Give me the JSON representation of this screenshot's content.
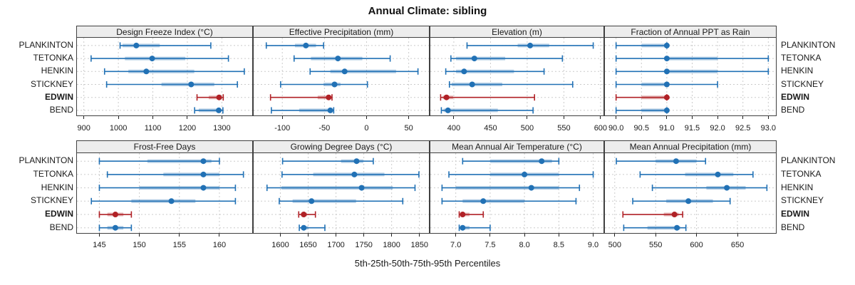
{
  "title": "Annual Climate: sibling",
  "caption": "5th-25th-50th-75th-95th Percentiles",
  "colors": {
    "series_blue": "#2171B5",
    "highlight_red": "#B02126",
    "grid": "#CBCBCB",
    "strip_bg": "#EDEDED",
    "panel_border": "#404040",
    "text": "#1A1A1A"
  },
  "chart_data": {
    "type": "scatter",
    "variant": "percentile-interval-dotplot",
    "orientation": "horizontal",
    "percentile_levels": [
      5,
      25,
      50,
      75,
      95
    ],
    "categories": [
      "PLANKINTON",
      "TETONKA",
      "HENKIN",
      "STICKNEY",
      "EDWIN",
      "BEND"
    ],
    "highlighted_category": "EDWIN",
    "grid": "dashed",
    "layout": "2 rows x 4 columns of panels, category labels on both left and right",
    "panels": [
      {
        "title": "Design Freeze Index (°C)",
        "xlim": [
          880,
          1388
        ],
        "ticks": [
          900,
          1000,
          1100,
          1200,
          1300
        ],
        "tick_labels": [
          "900",
          "1000",
          "1100",
          "1200",
          "1300"
        ],
        "series": [
          {
            "name": "PLANKINTON",
            "percentiles": [
              1005,
              1012,
              1052,
              1120,
              1268
            ]
          },
          {
            "name": "TETONKA",
            "percentiles": [
              921,
              1019,
              1098,
              1194,
              1319
            ]
          },
          {
            "name": "HENKIN",
            "percentiles": [
              960,
              1029,
              1081,
              1220,
              1365
            ]
          },
          {
            "name": "STICKNEY",
            "percentiles": [
              966,
              1125,
              1211,
              1278,
              1345
            ]
          },
          {
            "name": "EDWIN",
            "percentiles": [
              1228,
              1262,
              1292,
              1298,
              1304
            ]
          },
          {
            "name": "BEND",
            "percentiles": [
              1221,
              1233,
              1291,
              1297,
              1303
            ]
          }
        ]
      },
      {
        "title": "Effective Precipitation (mm)",
        "xlim": [
          -134,
          74
        ],
        "ticks": [
          -100,
          -50,
          0,
          50
        ],
        "tick_labels": [
          "-100",
          "-50",
          "0",
          "50"
        ],
        "series": [
          {
            "name": "PLANKINTON",
            "percentiles": [
              -119,
              -85,
              -72,
              -60,
              -51
            ]
          },
          {
            "name": "TETONKA",
            "percentiles": [
              -86,
              -66,
              -34,
              -5,
              28
            ]
          },
          {
            "name": "HENKIN",
            "percentiles": [
              -67,
              -43,
              -26,
              35,
              61
            ]
          },
          {
            "name": "STICKNEY",
            "percentiles": [
              -102,
              -51,
              -38,
              -31,
              1
            ]
          },
          {
            "name": "EDWIN",
            "percentiles": [
              -114,
              -58,
              -45,
              -43,
              -41
            ]
          },
          {
            "name": "BEND",
            "percentiles": [
              -113,
              -80,
              -43,
              -41,
              -39
            ]
          }
        ]
      },
      {
        "title": "Elevation (m)",
        "xlim": [
          368,
          604
        ],
        "ticks": [
          400,
          450,
          500,
          550,
          600
        ],
        "tick_labels": [
          "400",
          "450",
          "500",
          "550",
          "600"
        ],
        "series": [
          {
            "name": "PLANKINTON",
            "percentiles": [
              418,
              487,
              504,
              530,
              590
            ]
          },
          {
            "name": "TETONKA",
            "percentiles": [
              396,
              403,
              428,
              470,
              548
            ]
          },
          {
            "name": "HENKIN",
            "percentiles": [
              389,
              403,
              414,
              482,
              523
            ]
          },
          {
            "name": "STICKNEY",
            "percentiles": [
              394,
              397,
              425,
              466,
              562
            ]
          },
          {
            "name": "EDWIN",
            "percentiles": [
              382,
              385,
              390,
              399,
              510
            ]
          },
          {
            "name": "BEND",
            "percentiles": [
              383,
              386,
              392,
              460,
              508
            ]
          }
        ]
      },
      {
        "title": "Fraction of Annual PPT as Rain",
        "xlim": [
          89.78,
          93.15
        ],
        "ticks": [
          90.0,
          90.5,
          91.0,
          91.5,
          92.0,
          92.5,
          93.0
        ],
        "tick_labels": [
          "90.0",
          "90.5",
          "91.0",
          "91.5",
          "92.0",
          "92.5",
          "93.0"
        ],
        "series": [
          {
            "name": "PLANKINTON",
            "percentiles": [
              90,
              90.5,
              91,
              91,
              91
            ]
          },
          {
            "name": "TETONKA",
            "percentiles": [
              90,
              91,
              91,
              92,
              93
            ]
          },
          {
            "name": "HENKIN",
            "percentiles": [
              90,
              91,
              91,
              92,
              93
            ]
          },
          {
            "name": "STICKNEY",
            "percentiles": [
              90,
              90.5,
              91,
              91,
              92
            ]
          },
          {
            "name": "EDWIN",
            "percentiles": [
              90,
              90.5,
              91,
              91,
              91
            ]
          },
          {
            "name": "BEND",
            "percentiles": [
              90,
              90.5,
              91,
              91,
              91
            ]
          }
        ]
      },
      {
        "title": "Frost-Free Days",
        "xlim": [
          142.2,
          164.1
        ],
        "ticks": [
          145,
          150,
          155,
          160
        ],
        "tick_labels": [
          "145",
          "150",
          "155",
          "160"
        ],
        "series": [
          {
            "name": "PLANKINTON",
            "percentiles": [
              145,
              151,
              158,
              159,
              160
            ]
          },
          {
            "name": "TETONKA",
            "percentiles": [
              146,
              153,
              158,
              160,
              163
            ]
          },
          {
            "name": "HENKIN",
            "percentiles": [
              145,
              150,
              158,
              160,
              162
            ]
          },
          {
            "name": "STICKNEY",
            "percentiles": [
              144,
              149,
              154,
              157,
              162
            ]
          },
          {
            "name": "EDWIN",
            "percentiles": [
              145,
              146,
              147,
              148,
              149
            ]
          },
          {
            "name": "BEND",
            "percentiles": [
              145,
              146,
              147,
              148,
              149
            ]
          }
        ]
      },
      {
        "title": "Growing Degree Days (°C)",
        "xlim": [
          1552,
          1867
        ],
        "ticks": [
          1600,
          1650,
          1700,
          1750,
          1800,
          1850
        ],
        "tick_labels": [
          "1600",
          "1650",
          "1700",
          "1750",
          "1800",
          "1850"
        ],
        "series": [
          {
            "name": "PLANKINTON",
            "percentiles": [
              1604,
              1709,
              1737,
              1749,
              1767
            ]
          },
          {
            "name": "TETONKA",
            "percentiles": [
              1603,
              1659,
              1733,
              1787,
              1849
            ]
          },
          {
            "name": "HENKIN",
            "percentiles": [
              1576,
              1602,
              1746,
              1802,
              1842
            ]
          },
          {
            "name": "STICKNEY",
            "percentiles": [
              1598,
              1622,
              1656,
              1736,
              1820
            ]
          },
          {
            "name": "EDWIN",
            "percentiles": [
              1633,
              1637,
              1642,
              1648,
              1663
            ]
          },
          {
            "name": "BEND",
            "percentiles": [
              1634,
              1638,
              1642,
              1650,
              1680
            ]
          }
        ]
      },
      {
        "title": "Mean Annual Air Temperature (°C)",
        "xlim": [
          6.63,
          9.15
        ],
        "ticks": [
          7.0,
          7.5,
          8.0,
          8.5,
          9.0
        ],
        "tick_labels": [
          "7.0",
          "7.5",
          "8.0",
          "8.5",
          "9.0"
        ],
        "series": [
          {
            "name": "PLANKINTON",
            "percentiles": [
              7.1,
              7.5,
              8.25,
              8.4,
              8.5
            ]
          },
          {
            "name": "TETONKA",
            "percentiles": [
              6.9,
              7.5,
              8.0,
              8.5,
              9.0
            ]
          },
          {
            "name": "HENKIN",
            "percentiles": [
              6.8,
              7.0,
              8.1,
              8.5,
              8.8
            ]
          },
          {
            "name": "STICKNEY",
            "percentiles": [
              6.8,
              7.1,
              7.4,
              8.0,
              8.75
            ]
          },
          {
            "name": "EDWIN",
            "percentiles": [
              7.05,
              7.08,
              7.1,
              7.2,
              7.4
            ]
          },
          {
            "name": "BEND",
            "percentiles": [
              7.05,
              7.08,
              7.1,
              7.2,
              7.5
            ]
          }
        ]
      },
      {
        "title": "Mean Annual Precipitation (mm)",
        "xlim": [
          488,
          697
        ],
        "ticks": [
          500,
          550,
          600,
          650
        ],
        "tick_labels": [
          "500",
          "550",
          "600",
          "650"
        ],
        "series": [
          {
            "name": "PLANKINTON",
            "percentiles": [
              502,
              550,
              575,
              600,
              611
            ]
          },
          {
            "name": "TETONKA",
            "percentiles": [
              531,
              586,
              626,
              645,
              669
            ]
          },
          {
            "name": "HENKIN",
            "percentiles": [
              546,
              612,
              637,
              660,
              686
            ]
          },
          {
            "name": "STICKNEY",
            "percentiles": [
              522,
              563,
              590,
              620,
              641
            ]
          },
          {
            "name": "EDWIN",
            "percentiles": [
              510,
              560,
              573,
              578,
              583
            ]
          },
          {
            "name": "BEND",
            "percentiles": [
              511,
              540,
              576,
              580,
              587
            ]
          }
        ]
      }
    ]
  }
}
